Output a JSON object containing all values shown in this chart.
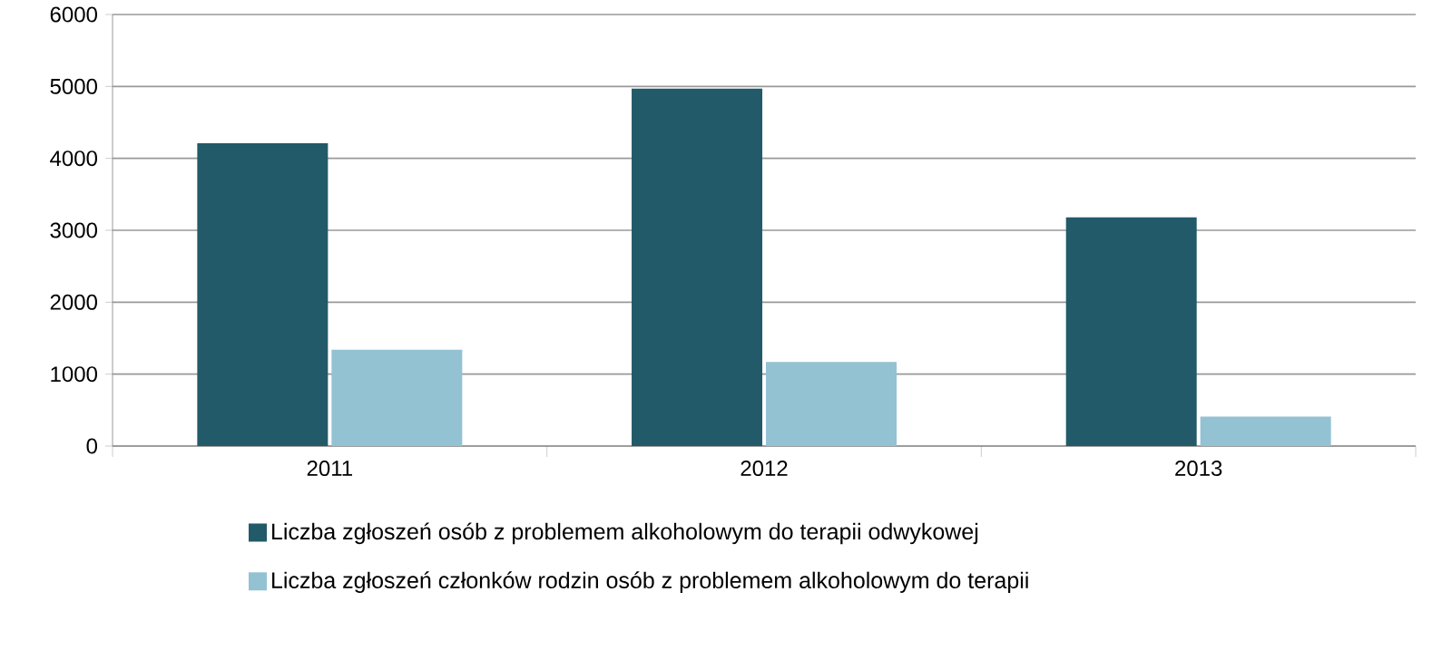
{
  "chart_data": {
    "type": "bar",
    "categories": [
      "2011",
      "2012",
      "2013"
    ],
    "series": [
      {
        "name": "Liczba zgłoszeń osób z problemem alkoholowym do terapii odwykowej",
        "color": "#225a69",
        "values": [
          4210,
          4970,
          3180
        ]
      },
      {
        "name": "Liczba zgłoszeń członków rodzin osób z problemem alkoholowym do terapii",
        "color": "#93c2d3",
        "values": [
          1340,
          1170,
          410
        ]
      }
    ],
    "ylim": [
      0,
      6000
    ],
    "yticks": [
      0,
      1000,
      2000,
      3000,
      4000,
      5000,
      6000
    ],
    "grid": "y",
    "legend": "bottom"
  }
}
